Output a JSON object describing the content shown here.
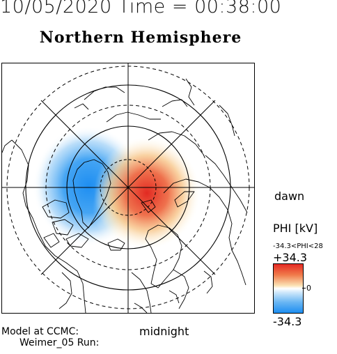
{
  "header": {
    "datetime": "10/05/2020 Time = 00:38:00"
  },
  "map": {
    "title": "Northern Hemisphere",
    "projection": "polar-stereographic",
    "orientation": {
      "right": "dawn",
      "bottom": "midnight"
    }
  },
  "labels": {
    "dawn": "dawn",
    "midnight": "midnight",
    "model": "Model at CCMC:",
    "run": "Weimer_05 Run:"
  },
  "legend": {
    "title": "PHI [kV]",
    "range_text": "-34.3<PHI<28",
    "max_label": "+34.3",
    "zero_label": "0",
    "min_label": "-34.3",
    "colors": {
      "positive": "#e52a24",
      "neutral": "#ffffff",
      "negative": "#1e8ef1"
    }
  },
  "potential_cells": [
    {
      "sign": "positive",
      "description_local_time": "dawn side",
      "extreme_kV": 28
    },
    {
      "sign": "negative",
      "description_local_time": "dusk side",
      "extreme_kV": -34.3
    }
  ]
}
